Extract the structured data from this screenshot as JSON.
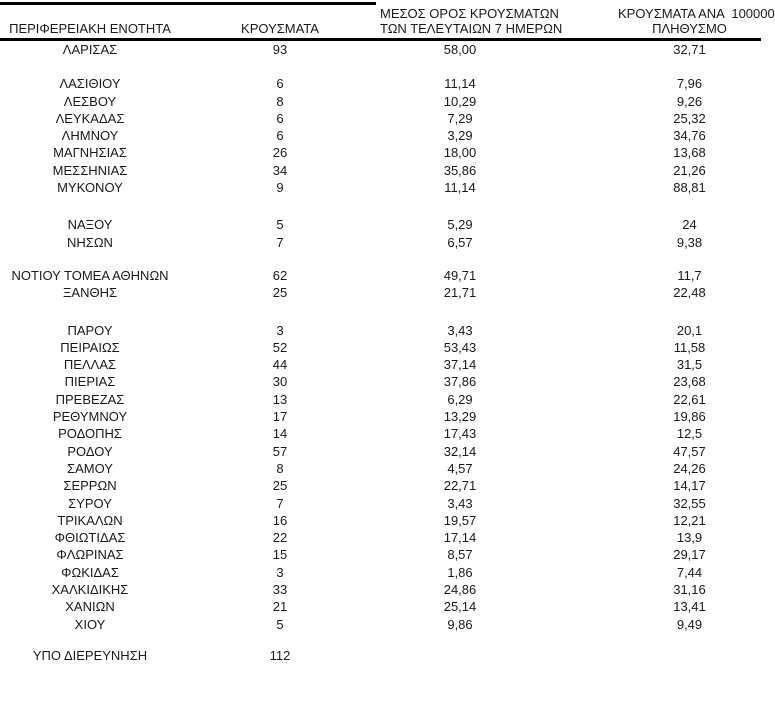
{
  "page": {
    "background": "#ffffff",
    "text_color": "#1a1a1a",
    "rule_color": "#000000"
  },
  "table": {
    "columns": [
      {
        "id": "region",
        "lines": [
          "ΠΕΡΙΦΕΡΕΙΑΚΗ ΕΝΟΤΗΤΑ"
        ]
      },
      {
        "id": "cases",
        "lines": [
          "ΚΡΟΥΣΜΑΤΑ"
        ]
      },
      {
        "id": "avg7days",
        "lines": [
          "ΜΕΣΟΣ ΟΡΟΣ ΚΡΟΥΣΜΑΤΩΝ",
          "ΤΩΝ ΤΕΛΕΥΤΑΙΩΝ 7 ΗΜΕΡΩΝ"
        ]
      },
      {
        "id": "per100k",
        "lines": [
          "ΚΡΟΥΣΜΑΤΑ ΑΝΑ  100000",
          "ΠΛΗΘΥΣΜΟ"
        ]
      }
    ],
    "groups": [
      {
        "gap_after": 17,
        "rows": [
          [
            "ΛΑΡΙΣΑΣ",
            "93",
            "58,00",
            "32,71"
          ]
        ]
      },
      {
        "gap_after": 20,
        "rows": [
          [
            "ΛΑΣΙΘΙΟΥ",
            "6",
            "11,14",
            "7,96"
          ],
          [
            "ΛΕΣΒΟΥ",
            "8",
            "10,29",
            "9,26"
          ],
          [
            "ΛΕΥΚΑΔΑΣ",
            "6",
            "7,29",
            "25,32"
          ],
          [
            "ΛΗΜΝΟΥ",
            "6",
            "3,29",
            "34,76"
          ],
          [
            "ΜΑΓΝΗΣΙΑΣ",
            "26",
            "18,00",
            "13,68"
          ],
          [
            "ΜΕΣΣΗΝΙΑΣ",
            "34",
            "35,86",
            "21,26"
          ],
          [
            "ΜΥΚΟΝΟΥ",
            "9",
            "11,14",
            "88,81"
          ]
        ]
      },
      {
        "gap_after": 16,
        "rows": [
          [
            "ΝΑΞΟΥ",
            "5",
            "5,29",
            "24"
          ],
          [
            "ΝΗΣΩΝ",
            "7",
            "6,57",
            "9,38"
          ]
        ]
      },
      {
        "gap_after": 20,
        "rows": [
          [
            "ΝΟΤΙΟΥ ΤΟΜΕΑ ΑΘΗΝΩΝ",
            "62",
            "49,71",
            "11,7"
          ],
          [
            "ΞΑΝΘΗΣ",
            "25",
            "21,71",
            "22,48"
          ]
        ]
      },
      {
        "gap_after": 14,
        "rows": [
          [
            "ΠΑΡΟΥ",
            "3",
            "3,43",
            "20,1"
          ],
          [
            "ΠΕΙΡΑΙΩΣ",
            "52",
            "53,43",
            "11,58"
          ],
          [
            "ΠΕΛΛΑΣ",
            "44",
            "37,14",
            "31,5"
          ],
          [
            "ΠΙΕΡΙΑΣ",
            "30",
            "37,86",
            "23,68"
          ],
          [
            "ΠΡΕΒΕΖΑΣ",
            "13",
            "6,29",
            "22,61"
          ],
          [
            "ΡΕΘΥΜΝΟΥ",
            "17",
            "13,29",
            "19,86"
          ],
          [
            "ΡΟΔΟΠΗΣ",
            "14",
            "17,43",
            "12,5"
          ],
          [
            "ΡΟΔΟΥ",
            "57",
            "32,14",
            "47,57"
          ],
          [
            "ΣΑΜΟΥ",
            "8",
            "4,57",
            "24,26"
          ],
          [
            "ΣΕΡΡΩΝ",
            "25",
            "22,71",
            "14,17"
          ],
          [
            "ΣΥΡΟΥ",
            "7",
            "3,43",
            "32,55"
          ],
          [
            "ΤΡΙΚΑΛΩΝ",
            "16",
            "19,57",
            "12,21"
          ],
          [
            "ΦΘΙΩΤΙΔΑΣ",
            "22",
            "17,14",
            "13,9"
          ],
          [
            "ΦΛΩΡΙΝΑΣ",
            "15",
            "8,57",
            "29,17"
          ],
          [
            "ΦΩΚΙΔΑΣ",
            "3",
            "1,86",
            "7,44"
          ],
          [
            "ΧΑΛΚΙΔΙΚΗΣ",
            "33",
            "24,86",
            "31,16"
          ],
          [
            "ΧΑΝΙΩΝ",
            "21",
            "25,14",
            "13,41"
          ],
          [
            "ΧΙΟΥ",
            "5",
            "9,86",
            "9,49"
          ]
        ]
      },
      {
        "gap_after": 0,
        "rows": [
          [
            "ΥΠΟ ΔΙΕΡΕΥΝΗΣΗ",
            "112",
            "",
            ""
          ]
        ]
      }
    ]
  }
}
